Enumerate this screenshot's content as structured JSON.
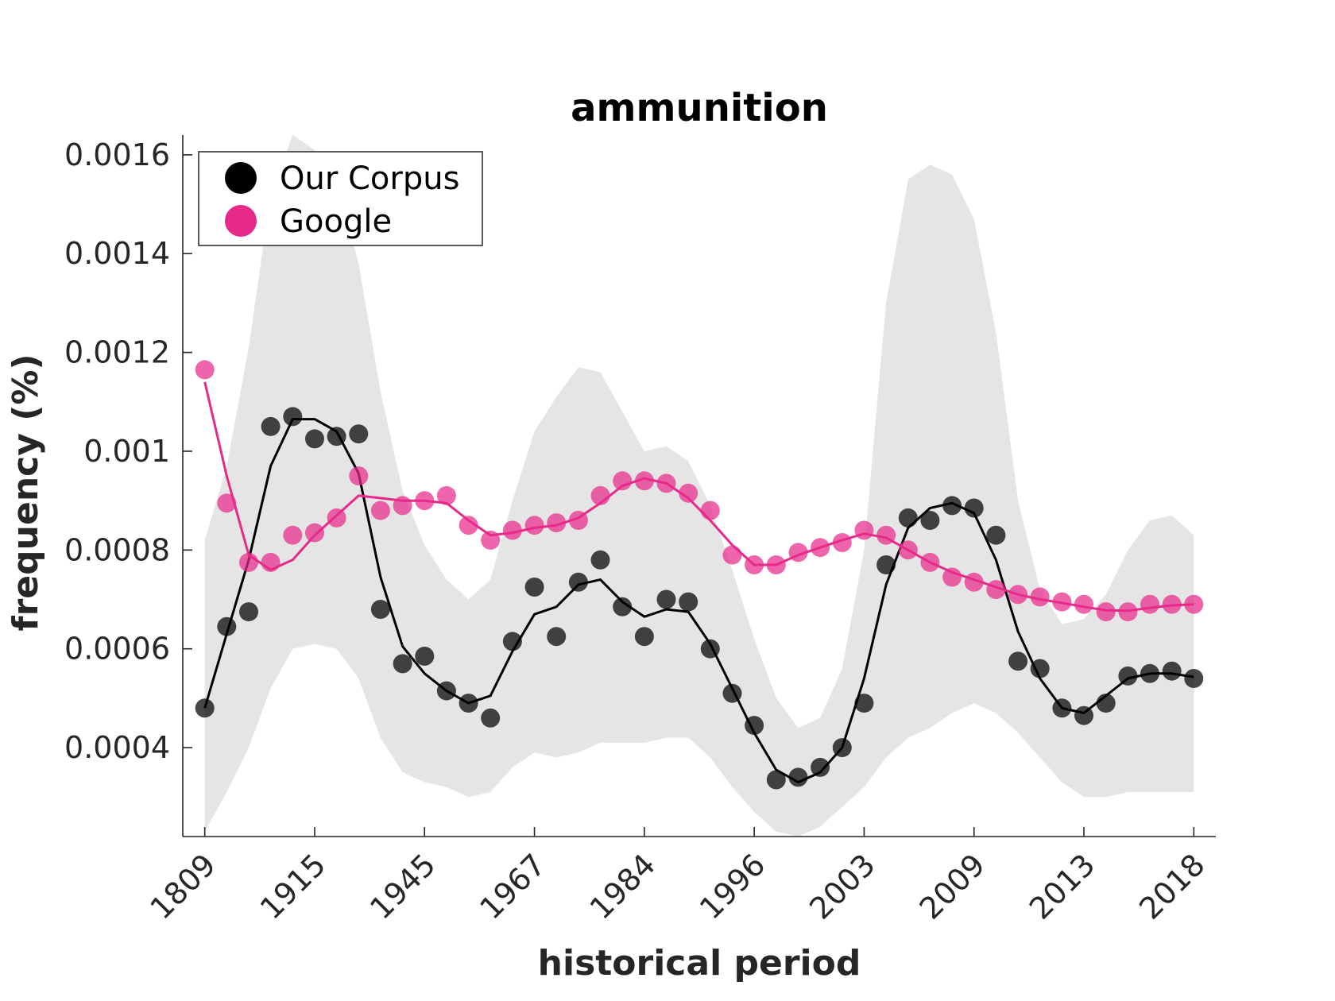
{
  "chart_data": {
    "type": "line",
    "title": "ammunition",
    "xlabel": "historical period",
    "ylabel": "frequency (%)",
    "ylim": [
      0.00022,
      0.00164
    ],
    "y_ticks": [
      0.0004,
      0.0006,
      0.0008,
      0.001,
      0.0012,
      0.0014,
      0.0016
    ],
    "y_tick_labels": [
      "0.0004",
      "0.0006",
      "0.0008",
      "0.001",
      "0.0012",
      "0.0014",
      "0.0016"
    ],
    "x_tick_labels": [
      "1809",
      "1915",
      "1945",
      "1967",
      "1984",
      "1996",
      "2003",
      "2009",
      "2013",
      "2018"
    ],
    "x_tick_positions": [
      1,
      6,
      11,
      16,
      21,
      26,
      31,
      36,
      41,
      46
    ],
    "x_range": [
      0,
      47
    ],
    "legend": {
      "position": "top-left",
      "entries": [
        "Our Corpus",
        "Google"
      ]
    },
    "colors": {
      "our_corpus": "#000000",
      "google": "#e7298a",
      "band": "#e5e5e5"
    },
    "series": [
      {
        "name": "Our Corpus",
        "points": [
          0.00048,
          0.000645,
          0.000675,
          0.00105,
          0.00107,
          0.001025,
          0.00103,
          0.001035,
          0.00068,
          0.00057,
          0.000585,
          0.000515,
          0.00049,
          0.00046,
          0.000615,
          0.000725,
          0.000625,
          0.000735,
          0.00078,
          0.000685,
          0.000625,
          0.0007,
          0.000695,
          0.0006,
          0.00051,
          0.000445,
          0.000335,
          0.00034,
          0.00036,
          0.0004,
          0.00049,
          0.00077,
          0.000865,
          0.00086,
          0.00089,
          0.000885,
          0.00083,
          0.000575,
          0.00056,
          0.00048,
          0.000465,
          0.00049,
          0.000545,
          0.00055,
          0.000555,
          0.00054
        ],
        "smoothed": [
          0.00048,
          0.00063,
          0.00078,
          0.00097,
          0.001065,
          0.001065,
          0.00104,
          0.000955,
          0.000745,
          0.000605,
          0.00055,
          0.000515,
          0.00049,
          0.000505,
          0.000595,
          0.00067,
          0.000685,
          0.00073,
          0.00074,
          0.000695,
          0.000665,
          0.00068,
          0.000675,
          0.00061,
          0.00052,
          0.00043,
          0.000355,
          0.00033,
          0.00035,
          0.0004,
          0.00054,
          0.00073,
          0.000845,
          0.000885,
          0.000895,
          0.000875,
          0.00078,
          0.000635,
          0.00054,
          0.00048,
          0.00047,
          0.000505,
          0.00054,
          0.00055,
          0.00055,
          0.000543
        ]
      },
      {
        "name": "Google",
        "points": [
          0.001165,
          0.000895,
          0.000775,
          0.000775,
          0.00083,
          0.000835,
          0.000865,
          0.00095,
          0.00088,
          0.00089,
          0.0009,
          0.00091,
          0.00085,
          0.00082,
          0.00084,
          0.00085,
          0.000855,
          0.00086,
          0.00091,
          0.00094,
          0.00094,
          0.000935,
          0.000915,
          0.00088,
          0.00079,
          0.00077,
          0.00077,
          0.000795,
          0.000805,
          0.000815,
          0.00084,
          0.00083,
          0.0008,
          0.000775,
          0.000745,
          0.000735,
          0.00072,
          0.00071,
          0.000705,
          0.000695,
          0.00069,
          0.000675,
          0.000675,
          0.00069,
          0.00069,
          0.00069
        ],
        "smoothed": [
          0.00114,
          0.00095,
          0.00079,
          0.00076,
          0.00078,
          0.00083,
          0.00087,
          0.00091,
          0.000905,
          0.0009,
          0.0009,
          0.000895,
          0.00086,
          0.00083,
          0.000835,
          0.000845,
          0.00085,
          0.000865,
          0.000895,
          0.00093,
          0.000945,
          0.000935,
          0.000905,
          0.00086,
          0.00081,
          0.00077,
          0.00077,
          0.00079,
          0.000805,
          0.00082,
          0.000833,
          0.000825,
          0.0008,
          0.000775,
          0.000755,
          0.00074,
          0.000725,
          0.00071,
          0.0007,
          0.000693,
          0.000685,
          0.000678,
          0.000677,
          0.000683,
          0.000688,
          0.00069
        ]
      }
    ],
    "band": {
      "upper": [
        0.00082,
        0.00097,
        0.00121,
        0.00152,
        0.00164,
        0.00161,
        0.00155,
        0.00138,
        0.00112,
        0.00092,
        0.00081,
        0.00074,
        0.0007,
        0.00074,
        0.0009,
        0.00104,
        0.00111,
        0.00117,
        0.00116,
        0.00108,
        0.001,
        0.00101,
        0.00098,
        0.00089,
        0.00076,
        0.00062,
        0.0005,
        0.00044,
        0.00046,
        0.00056,
        0.0008,
        0.0013,
        0.00155,
        0.00158,
        0.00156,
        0.00147,
        0.00124,
        0.0009,
        0.00072,
        0.00065,
        0.00066,
        0.00071,
        0.0008,
        0.00086,
        0.00087,
        0.00083
      ],
      "lower": [
        0.00023,
        0.00031,
        0.0004,
        0.00052,
        0.0006,
        0.00061,
        0.0006,
        0.00054,
        0.00042,
        0.00035,
        0.00033,
        0.00032,
        0.0003,
        0.00031,
        0.00036,
        0.00039,
        0.00038,
        0.00039,
        0.00041,
        0.00041,
        0.00041,
        0.00042,
        0.00042,
        0.00038,
        0.00032,
        0.00027,
        0.00023,
        0.00022,
        0.00024,
        0.00028,
        0.00032,
        0.00038,
        0.00042,
        0.00044,
        0.00047,
        0.00049,
        0.00047,
        0.00043,
        0.00038,
        0.00033,
        0.0003,
        0.0003,
        0.00031,
        0.00031,
        0.00031,
        0.00031
      ]
    }
  }
}
